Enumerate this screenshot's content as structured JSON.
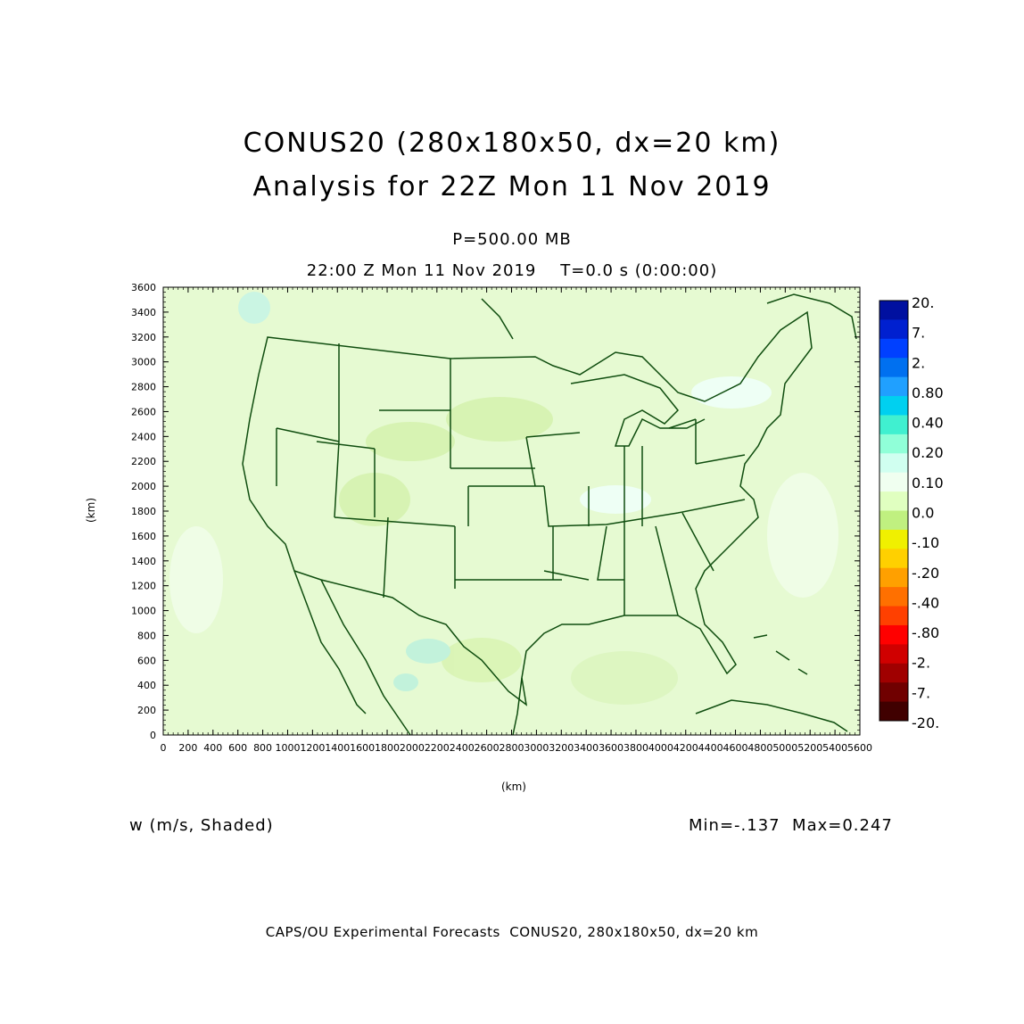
{
  "title": {
    "line1": "CONUS20 (280x180x50, dx=20 km)",
    "line2": "Analysis for 22Z Mon 11 Nov 2019"
  },
  "subtitle": {
    "level": "P=500.00 MB",
    "time": "22:00 Z Mon 11 Nov 2019    T=0.0 s (0:00:00)"
  },
  "field_label": "w (m/s, Shaded)",
  "min_max": "Min=-.137  Max=0.247",
  "footer": "CAPS/OU Experimental Forecasts  CONUS20, 280x180x50, dx=20 km",
  "axes": {
    "x_unit": "(km)",
    "y_unit": "(km)",
    "x_ticks": [
      "0",
      "200",
      "400",
      "600",
      "800",
      "1000",
      "1200",
      "1400",
      "1600",
      "1800",
      "2000",
      "2200",
      "2400",
      "2600",
      "2800",
      "3000",
      "3200",
      "3400",
      "3600",
      "3800",
      "4000",
      "4200",
      "4400",
      "4600",
      "4800",
      "5000",
      "5200",
      "5400",
      "5600"
    ],
    "y_ticks": [
      "0",
      "200",
      "400",
      "600",
      "800",
      "1000",
      "1200",
      "1400",
      "1600",
      "1800",
      "2000",
      "2200",
      "2400",
      "2600",
      "2800",
      "3000",
      "3200",
      "3400",
      "3600"
    ],
    "x_range": [
      0,
      5600
    ],
    "y_range": [
      0,
      3600
    ]
  },
  "colorbar": {
    "labels": [
      "20.",
      "7.",
      "2.",
      "0.80",
      "0.40",
      "0.20",
      "0.10",
      "0.0",
      "-.10",
      "-.20",
      "-.40",
      "-.80",
      "-2.",
      "-7.",
      "-20."
    ],
    "colors": [
      "#0010a0",
      "#0020d0",
      "#0040ff",
      "#0070f0",
      "#20a0ff",
      "#00d0f0",
      "#40f0d0",
      "#90ffd8",
      "#d0fff0",
      "#f0fff0",
      "#e0ffc0",
      "#c0f080",
      "#f0f000",
      "#ffd000",
      "#ffa000",
      "#ff7000",
      "#ff4000",
      "#ff0000",
      "#d00000",
      "#a00000",
      "#700000",
      "#400000"
    ]
  },
  "map": {
    "background_color": "#e6fad2",
    "boundary_color": "#0f4d0f"
  }
}
